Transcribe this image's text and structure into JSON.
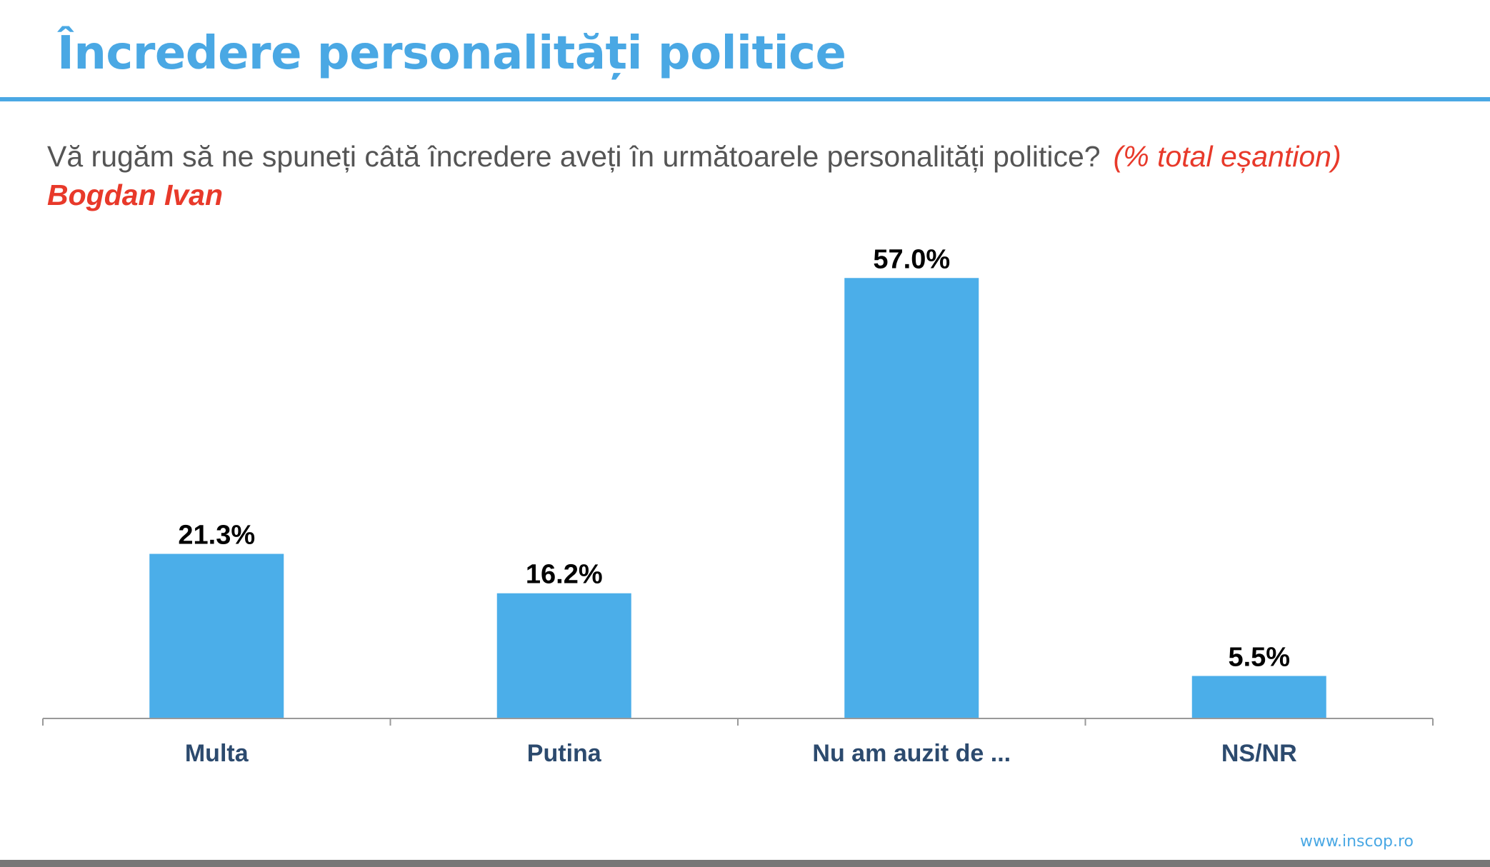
{
  "header": {
    "title": "Încredere personalități politice"
  },
  "question": {
    "text": "Vă rugăm să ne spuneți câtă încredere aveți în următoarele personalități politice?",
    "note": "(% total eșantion)",
    "subject": "Bogdan Ivan"
  },
  "colors": {
    "title": "#4aa8e4",
    "bar": "#4baee9",
    "note": "#e8392a",
    "category_label": "#2c4a6e"
  },
  "chart_data": {
    "type": "bar",
    "title": "",
    "xlabel": "",
    "ylabel": "",
    "categories": [
      "Multa",
      "Putina",
      "Nu am auzit de ...",
      "NS/NR"
    ],
    "values": [
      21.3,
      16.2,
      57.0,
      5.5
    ],
    "value_labels": [
      "21.3%",
      "16.2%",
      "57.0%",
      "5.5%"
    ],
    "ylim": [
      0,
      60
    ],
    "grid": false,
    "legend": "none"
  },
  "footer": {
    "website": "www.inscop.ro"
  }
}
